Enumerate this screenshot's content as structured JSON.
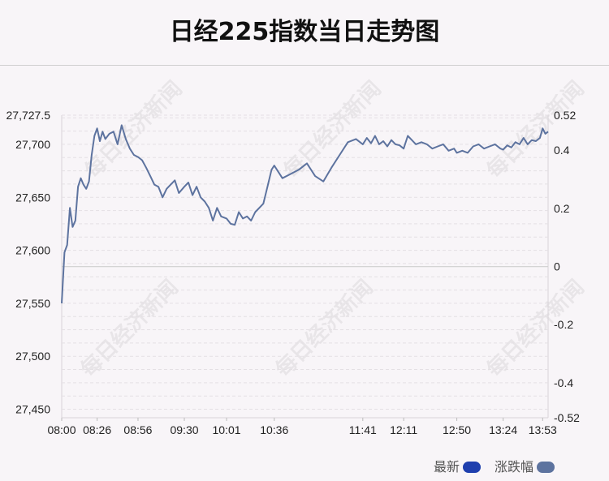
{
  "title": "日经225指数当日走势图",
  "watermark_text": "每日经济新闻",
  "legend": [
    {
      "label": "最新",
      "color": "#1f3fae"
    },
    {
      "label": "涨跌幅",
      "color": "#5d739f"
    }
  ],
  "chart_data": {
    "type": "line",
    "title": "日经225指数当日走势图",
    "x_ticks": [
      "08:00",
      "08:26",
      "08:56",
      "09:30",
      "10:01",
      "10:36",
      "11:41",
      "12:11",
      "12:50",
      "13:24",
      "13:53"
    ],
    "y_left_ticks": [
      "27,727.5",
      "27,700",
      "27,650",
      "27,600",
      "27,550",
      "27,500",
      "27,450"
    ],
    "y_left_values": [
      27727.5,
      27700,
      27650,
      27600,
      27550,
      27500,
      27450
    ],
    "y_left_range": [
      27442,
      27727.5
    ],
    "y_right_ticks": [
      "0.52",
      "0.4",
      "0.2",
      "0",
      "-0.2",
      "-0.4",
      "-0.52"
    ],
    "y_right_values": [
      0.52,
      0.4,
      0.2,
      0,
      -0.2,
      -0.4,
      -0.52
    ],
    "baseline_value": 27584.6,
    "line_color": "#5d739f",
    "series": [
      {
        "x": [
          "08:00",
          "08:02",
          "08:04",
          "08:06",
          "08:08",
          "08:10",
          "08:12",
          "08:14",
          "08:16",
          "08:18",
          "08:20",
          "08:22",
          "08:24",
          "08:26",
          "08:28",
          "08:30",
          "08:32",
          "08:35",
          "08:38",
          "08:41",
          "08:44",
          "08:47",
          "08:50",
          "08:53",
          "08:56",
          "08:59",
          "09:02",
          "09:05",
          "09:08",
          "09:11",
          "09:14",
          "09:17",
          "09:20",
          "09:23",
          "09:26",
          "09:30",
          "09:33",
          "09:36",
          "09:39",
          "09:42",
          "09:45",
          "09:48",
          "09:51",
          "09:54",
          "09:57",
          "10:01",
          "10:04",
          "10:07",
          "10:10",
          "10:13",
          "10:16",
          "10:19",
          "10:22",
          "10:25",
          "10:28",
          "10:31",
          "10:34",
          "10:36",
          "10:42",
          "10:48",
          "10:54",
          "11:00",
          "11:06",
          "11:12",
          "11:18",
          "11:24",
          "11:30",
          "11:36",
          "11:41",
          "11:44",
          "11:47",
          "11:50",
          "11:53",
          "11:56",
          "11:59",
          "12:02",
          "12:05",
          "12:08",
          "12:11",
          "12:14",
          "12:17",
          "12:20",
          "12:24",
          "12:28",
          "12:32",
          "12:36",
          "12:40",
          "12:44",
          "12:48",
          "12:50",
          "12:54",
          "12:58",
          "13:02",
          "13:06",
          "13:10",
          "13:14",
          "13:18",
          "13:22",
          "13:24",
          "13:27",
          "13:30",
          "13:33",
          "13:36",
          "13:39",
          "13:42",
          "13:45",
          "13:48",
          "13:51",
          "13:53",
          "13:55",
          "13:57"
        ],
        "values": [
          27550,
          27598,
          27605,
          27640,
          27622,
          27628,
          27660,
          27668,
          27662,
          27658,
          27665,
          27690,
          27708,
          27715,
          27703,
          27712,
          27705,
          27710,
          27712,
          27700,
          27718,
          27705,
          27696,
          27690,
          27688,
          27685,
          27678,
          27670,
          27662,
          27660,
          27650,
          27658,
          27662,
          27666,
          27654,
          27660,
          27664,
          27652,
          27660,
          27650,
          27646,
          27640,
          27628,
          27640,
          27632,
          27630,
          27625,
          27624,
          27636,
          27630,
          27632,
          27628,
          27636,
          27640,
          27644,
          27660,
          27676,
          27680,
          27668,
          27672,
          27676,
          27682,
          27670,
          27665,
          27678,
          27690,
          27702,
          27705,
          27700,
          27706,
          27701,
          27708,
          27700,
          27703,
          27698,
          27704,
          27700,
          27699,
          27696,
          27708,
          27704,
          27700,
          27702,
          27700,
          27696,
          27698,
          27700,
          27694,
          27696,
          27692,
          27694,
          27692,
          27698,
          27700,
          27696,
          27698,
          27700,
          27696,
          27695,
          27699,
          27697,
          27702,
          27700,
          27706,
          27700,
          27704,
          27703,
          27706,
          27715,
          27710,
          27712
        ]
      }
    ]
  }
}
